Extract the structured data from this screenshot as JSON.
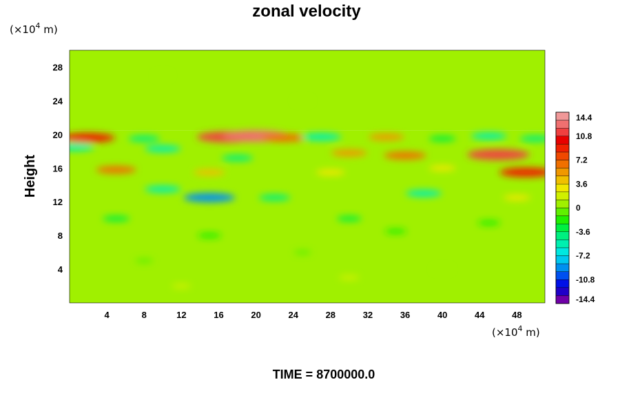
{
  "chart_data": {
    "type": "heatmap",
    "title": "zonal velocity",
    "ylabel": "Height",
    "x_unit_label": "(×10",
    "x_unit_exp": "4",
    "x_unit_suffix": " m)",
    "y_unit_label": "(×10",
    "y_unit_exp": "4",
    "y_unit_suffix": " m)",
    "x_ticks": [
      "4",
      "8",
      "12",
      "16",
      "20",
      "24",
      "28",
      "32",
      "36",
      "40",
      "44",
      "48"
    ],
    "x_tick_values": [
      4,
      8,
      12,
      16,
      20,
      24,
      28,
      32,
      36,
      40,
      44,
      48
    ],
    "y_ticks": [
      "4",
      "8",
      "12",
      "16",
      "20",
      "24",
      "28"
    ],
    "y_tick_values": [
      4,
      8,
      12,
      16,
      20,
      24,
      28
    ],
    "xlim": [
      0,
      51
    ],
    "ylim": [
      0,
      30
    ],
    "colorbar": {
      "labels": [
        "14.4",
        "10.8",
        "7.2",
        "3.6",
        "0",
        "-3.6",
        "-7.2",
        "-10.8",
        "-14.4"
      ],
      "label_values": [
        14.4,
        10.8,
        7.2,
        3.6,
        0,
        -3.6,
        -7.2,
        -10.8,
        -14.4
      ],
      "min": -14.4,
      "max": 14.4,
      "levels": 24,
      "colormap": [
        "#7000a8",
        "#2000c8",
        "#0010e8",
        "#0050f0",
        "#0090f0",
        "#00c8f0",
        "#00e8e0",
        "#00f0b0",
        "#00f080",
        "#00f040",
        "#20f000",
        "#60f000",
        "#a0f000",
        "#d0f000",
        "#f0e800",
        "#f0c000",
        "#f09800",
        "#f07000",
        "#f04800",
        "#f02000",
        "#e80000",
        "#f04040",
        "#f07070",
        "#f09898"
      ]
    },
    "features": [
      {
        "x": 12,
        "y": 2,
        "value": 1.2
      },
      {
        "x": 30,
        "y": 3,
        "value": 1.5
      },
      {
        "x": 8,
        "y": 5,
        "value": -1.0
      },
      {
        "x": 25,
        "y": 6,
        "value": -0.8
      },
      {
        "x": 40,
        "y": 4,
        "value": 1.0
      },
      {
        "x": 15,
        "y": 8,
        "value": -2.2
      },
      {
        "x": 35,
        "y": 8.5,
        "value": -1.8
      },
      {
        "x": 5,
        "y": 10,
        "value": -3.0
      },
      {
        "x": 30,
        "y": 10,
        "value": -2.5
      },
      {
        "x": 45,
        "y": 9.5,
        "value": -2.0
      },
      {
        "x": 15,
        "y": 12.5,
        "value": -8.5
      },
      {
        "x": 22,
        "y": 12.5,
        "value": -4.0
      },
      {
        "x": 38,
        "y": 13,
        "value": -5.0
      },
      {
        "x": 10,
        "y": 13.5,
        "value": -5.0
      },
      {
        "x": 48,
        "y": 12.5,
        "value": 3.0
      },
      {
        "x": 5,
        "y": 15.8,
        "value": 6.0
      },
      {
        "x": 15,
        "y": 15.5,
        "value": 4.0
      },
      {
        "x": 28,
        "y": 15.5,
        "value": 3.5
      },
      {
        "x": 40,
        "y": 16,
        "value": 3.0
      },
      {
        "x": 49,
        "y": 15.5,
        "value": 9.0
      },
      {
        "x": 18,
        "y": 17.2,
        "value": -4.0
      },
      {
        "x": 36,
        "y": 17.5,
        "value": 6.5
      },
      {
        "x": 46,
        "y": 17.6,
        "value": 11.0
      },
      {
        "x": 30,
        "y": 17.8,
        "value": 5.0
      },
      {
        "x": 10,
        "y": 18.3,
        "value": -5.0
      },
      {
        "x": 0.5,
        "y": 18.5,
        "value": -6.0
      },
      {
        "x": 2,
        "y": 19.6,
        "value": 9.0
      },
      {
        "x": 17,
        "y": 19.7,
        "value": 11.0
      },
      {
        "x": 20,
        "y": 19.8,
        "value": 12.0
      },
      {
        "x": 23,
        "y": 19.6,
        "value": 7.0
      },
      {
        "x": 34,
        "y": 19.7,
        "value": 5.0
      },
      {
        "x": 27,
        "y": 19.7,
        "value": -6.0
      },
      {
        "x": 45,
        "y": 19.8,
        "value": -5.0
      },
      {
        "x": 50,
        "y": 19.5,
        "value": -4.0
      },
      {
        "x": 8,
        "y": 19.5,
        "value": -4.0
      },
      {
        "x": 40,
        "y": 19.5,
        "value": -3.0
      },
      {
        "x": 25,
        "y": 24,
        "value": 0.6
      },
      {
        "x": 10,
        "y": 27,
        "value": 0.5
      }
    ]
  },
  "footer": {
    "time_label": "TIME = 8700000.0"
  }
}
